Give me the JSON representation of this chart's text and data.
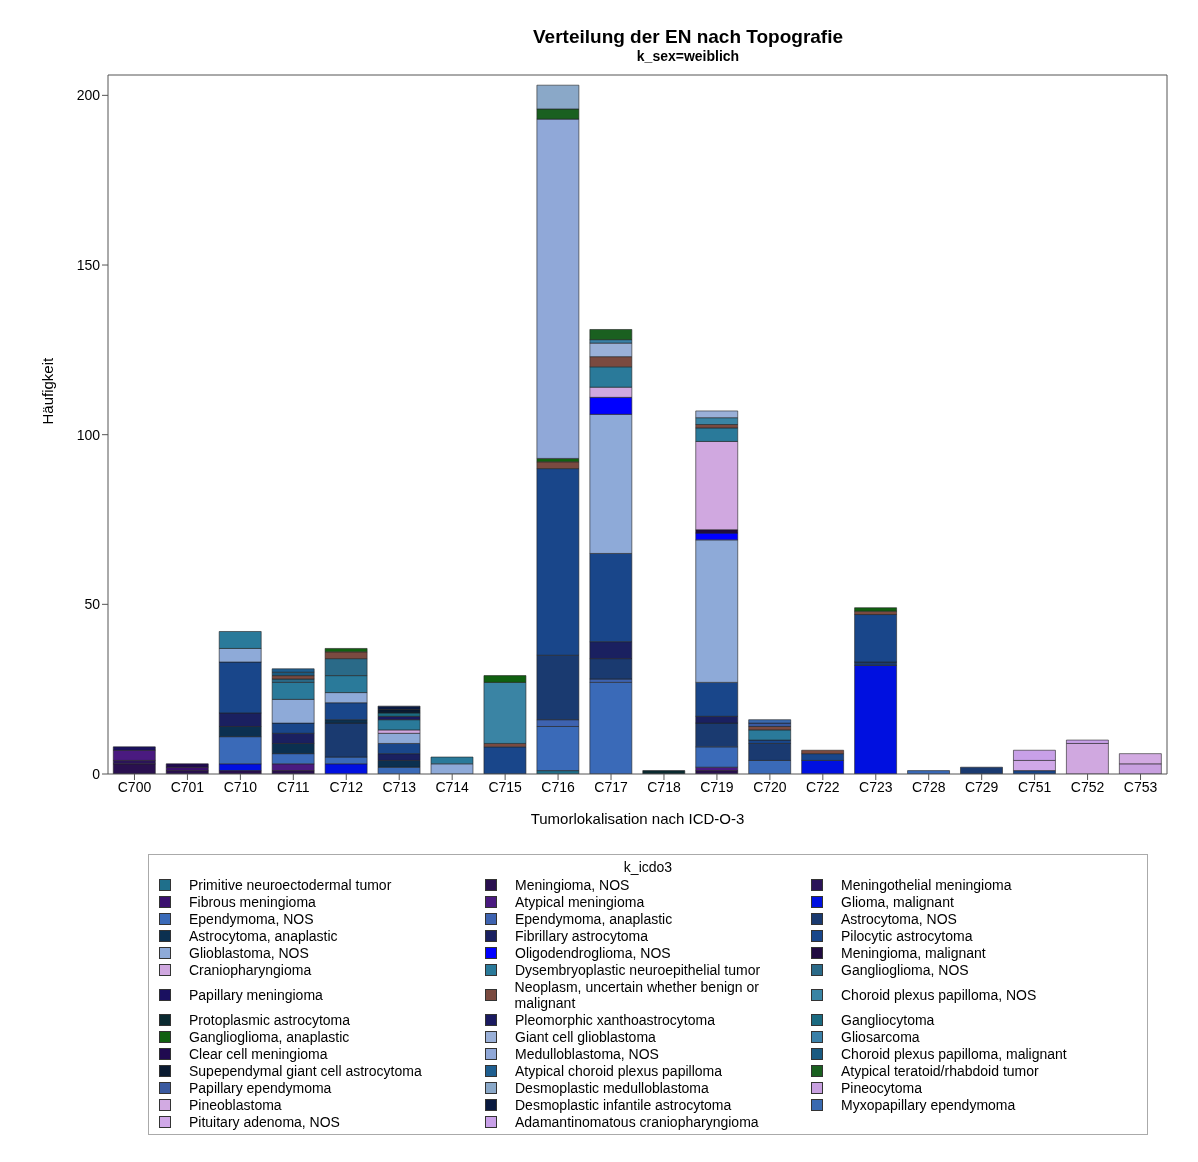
{
  "chart_data": {
    "type": "bar",
    "stacked": true,
    "title": "Verteilung der EN nach Topografie",
    "subtitle": "k_sex=weiblich",
    "xlabel": "Tumorlokalisation nach ICD-O-3",
    "ylabel": "Häufigkeit",
    "legend_title": "k_icdo3",
    "legend": "bottom",
    "ylim": [
      0,
      206
    ],
    "yticks": [
      0,
      50,
      100,
      150,
      200
    ],
    "categories": [
      "C700",
      "C701",
      "C710",
      "C711",
      "C712",
      "C713",
      "C714",
      "C715",
      "C716",
      "C717",
      "C718",
      "C719",
      "C720",
      "C722",
      "C723",
      "C728",
      "C729",
      "C751",
      "C752",
      "C753"
    ],
    "series": [
      {
        "name": "Primitive neuroectodermal tumor",
        "color": "#1f6f8b",
        "values": [
          null,
          null,
          null,
          null,
          null,
          null,
          null,
          null,
          1,
          null,
          null,
          null,
          null,
          null,
          null,
          null,
          null,
          null,
          null,
          null
        ]
      },
      {
        "name": "Meningioma, NOS",
        "color": "#2a1050",
        "values": [
          3,
          1,
          1,
          1,
          null,
          null,
          null,
          null,
          null,
          null,
          null,
          1,
          null,
          null,
          null,
          null,
          null,
          null,
          null,
          null
        ]
      },
      {
        "name": "Meningothelial meningioma",
        "color": "#2b1458",
        "values": [
          1,
          null,
          null,
          null,
          null,
          null,
          null,
          null,
          null,
          null,
          null,
          null,
          null,
          null,
          null,
          null,
          null,
          null,
          null,
          null
        ]
      },
      {
        "name": "Fibrous meningioma",
        "color": "#3a0f6e",
        "values": [
          null,
          1,
          null,
          null,
          null,
          null,
          null,
          null,
          null,
          null,
          null,
          null,
          null,
          null,
          null,
          null,
          null,
          null,
          null,
          null
        ]
      },
      {
        "name": "Atypical meningioma",
        "color": "#4a1a80",
        "values": [
          3,
          null,
          null,
          2,
          null,
          null,
          null,
          null,
          null,
          null,
          null,
          1,
          null,
          null,
          null,
          null,
          null,
          null,
          null,
          null
        ]
      },
      {
        "name": "Glioma, malignant",
        "color": "#0010e0",
        "values": [
          null,
          null,
          2,
          null,
          3,
          null,
          null,
          null,
          null,
          null,
          null,
          null,
          null,
          4,
          32,
          null,
          null,
          null,
          null,
          null
        ]
      },
      {
        "name": "Ependymoma, NOS",
        "color": "#3a6ab8",
        "values": [
          null,
          null,
          8,
          3,
          2,
          2,
          null,
          null,
          13,
          27,
          null,
          6,
          4,
          null,
          null,
          1,
          null,
          null,
          null,
          null
        ]
      },
      {
        "name": "Ependymoma, anaplastic",
        "color": "#3e63b0",
        "values": [
          null,
          null,
          null,
          null,
          null,
          null,
          null,
          null,
          2,
          1,
          null,
          null,
          null,
          null,
          null,
          null,
          null,
          null,
          null,
          null
        ]
      },
      {
        "name": "Astrocytoma, NOS",
        "color": "#1a3a70",
        "values": [
          null,
          null,
          null,
          null,
          10,
          null,
          null,
          null,
          19,
          6,
          null,
          7,
          5,
          null,
          1,
          null,
          2,
          null,
          null,
          null
        ]
      },
      {
        "name": "Astrocytoma, anaplastic",
        "color": "#0b3050",
        "values": [
          null,
          null,
          3,
          3,
          1,
          2,
          null,
          null,
          null,
          null,
          null,
          null,
          null,
          null,
          null,
          null,
          null,
          null,
          null,
          null
        ]
      },
      {
        "name": "Fibrillary astrocytoma",
        "color": "#1a2060",
        "values": [
          null,
          null,
          4,
          3,
          null,
          2,
          null,
          null,
          null,
          5,
          null,
          2,
          null,
          null,
          null,
          null,
          null,
          null,
          null,
          null
        ]
      },
      {
        "name": "Pilocytic astrocytoma",
        "color": "#19468a",
        "values": [
          null,
          null,
          15,
          3,
          5,
          3,
          null,
          8,
          55,
          26,
          null,
          10,
          1,
          2,
          14,
          null,
          null,
          1,
          null,
          null
        ]
      },
      {
        "name": "Glioblastoma, NOS",
        "color": "#8eaad8",
        "values": [
          null,
          null,
          4,
          7,
          3,
          3,
          3,
          null,
          null,
          41,
          null,
          42,
          null,
          null,
          null,
          null,
          null,
          null,
          null,
          null
        ]
      },
      {
        "name": "Oligodendroglioma, NOS",
        "color": "#0000ff",
        "values": [
          null,
          null,
          null,
          null,
          null,
          null,
          null,
          null,
          null,
          5,
          null,
          2,
          null,
          null,
          null,
          null,
          null,
          null,
          null,
          null
        ]
      },
      {
        "name": "Meningioma, malignant",
        "color": "#200a40",
        "values": [
          null,
          null,
          null,
          null,
          null,
          null,
          null,
          null,
          null,
          null,
          null,
          1,
          null,
          null,
          null,
          null,
          null,
          null,
          null,
          null
        ]
      },
      {
        "name": "Craniopharyngioma",
        "color": "#d0a8e0",
        "values": [
          null,
          null,
          null,
          null,
          null,
          1,
          null,
          null,
          null,
          3,
          null,
          26,
          null,
          null,
          null,
          null,
          null,
          null,
          9,
          null
        ]
      },
      {
        "name": "Dysembryoplastic neuroepithelial tumor",
        "color": "#2a7a9a",
        "values": [
          null,
          null,
          5,
          5,
          5,
          3,
          2,
          null,
          null,
          6,
          null,
          4,
          3,
          null,
          null,
          null,
          null,
          null,
          null,
          null
        ]
      },
      {
        "name": "Ganglioglioma, NOS",
        "color": "#2a6a88",
        "values": [
          null,
          null,
          null,
          1,
          5,
          null,
          null,
          null,
          null,
          null,
          null,
          null,
          null,
          null,
          null,
          null,
          null,
          null,
          null,
          null
        ]
      },
      {
        "name": "Papillary meningioma",
        "color": "#1a1060",
        "values": [
          1,
          null,
          null,
          null,
          null,
          null,
          null,
          null,
          null,
          null,
          null,
          null,
          null,
          null,
          null,
          null,
          null,
          null,
          null,
          null
        ]
      },
      {
        "name": "Neoplasm, uncertain whether benign or malignant",
        "color": "#7a4a40",
        "values": [
          null,
          null,
          null,
          1,
          2,
          null,
          null,
          1,
          2,
          3,
          null,
          1,
          1,
          1,
          1,
          null,
          null,
          null,
          null,
          null
        ]
      },
      {
        "name": "Choroid plexus papilloma, NOS",
        "color": "#3a84a4",
        "values": [
          null,
          null,
          null,
          null,
          null,
          null,
          null,
          18,
          null,
          null,
          null,
          2,
          null,
          null,
          null,
          null,
          null,
          null,
          null,
          null
        ]
      },
      {
        "name": "Protoplasmic astrocytoma",
        "color": "#0a2a30",
        "values": [
          null,
          null,
          null,
          null,
          null,
          null,
          null,
          null,
          null,
          null,
          1,
          null,
          null,
          null,
          null,
          null,
          null,
          null,
          null,
          null
        ]
      },
      {
        "name": "Pleomorphic xanthoastrocytoma",
        "color": "#1a1a60",
        "values": [
          null,
          null,
          null,
          null,
          null,
          1,
          null,
          null,
          null,
          null,
          null,
          null,
          null,
          null,
          null,
          null,
          null,
          null,
          null,
          null
        ]
      },
      {
        "name": "Gangliocytoma",
        "color": "#1a6a80",
        "values": [
          null,
          null,
          null,
          null,
          null,
          1,
          null,
          null,
          null,
          null,
          null,
          null,
          null,
          null,
          null,
          null,
          null,
          null,
          null,
          null
        ]
      },
      {
        "name": "Ganglioglioma, anaplastic",
        "color": "#106010",
        "values": [
          null,
          null,
          null,
          null,
          1,
          null,
          null,
          2,
          1,
          null,
          null,
          null,
          null,
          null,
          1,
          null,
          null,
          null,
          null,
          null
        ]
      },
      {
        "name": "Giant cell glioblastoma",
        "color": "#9ab0d8",
        "values": [
          null,
          null,
          null,
          null,
          null,
          null,
          null,
          null,
          null,
          4,
          null,
          2,
          null,
          null,
          null,
          null,
          null,
          null,
          null,
          null
        ]
      },
      {
        "name": "Gliosarcoma",
        "color": "#3a80a8",
        "values": [
          null,
          null,
          null,
          null,
          null,
          null,
          null,
          null,
          null,
          1,
          null,
          null,
          null,
          null,
          null,
          null,
          null,
          null,
          null,
          null
        ]
      },
      {
        "name": "Clear cell meningioma",
        "color": "#200a50",
        "values": [
          null,
          1,
          null,
          null,
          null,
          null,
          null,
          null,
          null,
          null,
          null,
          null,
          null,
          null,
          null,
          null,
          null,
          null,
          null,
          null
        ]
      },
      {
        "name": "Medulloblastoma, NOS",
        "color": "#90a8d8",
        "values": [
          null,
          null,
          null,
          null,
          null,
          null,
          null,
          null,
          100,
          null,
          null,
          null,
          null,
          null,
          null,
          null,
          null,
          null,
          null,
          null
        ]
      },
      {
        "name": "Choroid plexus papilloma, malignant",
        "color": "#1a5a80",
        "values": [
          null,
          null,
          null,
          1,
          null,
          null,
          null,
          null,
          null,
          null,
          null,
          null,
          null,
          null,
          null,
          null,
          null,
          null,
          null,
          null
        ]
      },
      {
        "name": "Supependymal giant cell astrocytoma",
        "color": "#0a1a30",
        "values": [
          null,
          null,
          null,
          null,
          null,
          1,
          null,
          null,
          null,
          null,
          null,
          null,
          null,
          null,
          null,
          null,
          null,
          null,
          null,
          null
        ]
      },
      {
        "name": "Atypical choroid plexus papilloma",
        "color": "#1f5f90",
        "values": [
          null,
          null,
          null,
          1,
          null,
          null,
          null,
          null,
          null,
          null,
          null,
          null,
          null,
          null,
          null,
          null,
          null,
          null,
          null,
          null
        ]
      },
      {
        "name": "Atypical teratoid/rhabdoid tumor",
        "color": "#1a6020",
        "values": [
          null,
          null,
          null,
          null,
          null,
          null,
          null,
          null,
          3,
          3,
          null,
          null,
          null,
          null,
          null,
          null,
          null,
          null,
          null,
          null
        ]
      },
      {
        "name": "Papillary ependymoma",
        "color": "#3a5aa0",
        "values": [
          null,
          null,
          null,
          null,
          null,
          null,
          null,
          null,
          null,
          null,
          null,
          null,
          1,
          null,
          null,
          null,
          null,
          null,
          null,
          null
        ]
      },
      {
        "name": "Desmoplastic medulloblastoma",
        "color": "#8aa8c8",
        "values": [
          null,
          null,
          null,
          null,
          null,
          null,
          null,
          null,
          7,
          null,
          null,
          null,
          null,
          null,
          null,
          null,
          null,
          null,
          null,
          null
        ]
      },
      {
        "name": "Pineocytoma",
        "color": "#c8a0e0",
        "values": [
          null,
          null,
          null,
          null,
          null,
          null,
          null,
          null,
          null,
          null,
          null,
          null,
          null,
          null,
          null,
          null,
          null,
          null,
          null,
          3
        ]
      },
      {
        "name": "Pineoblastoma",
        "color": "#d2aae2",
        "values": [
          null,
          null,
          null,
          null,
          null,
          null,
          null,
          null,
          null,
          null,
          null,
          null,
          null,
          null,
          null,
          null,
          null,
          null,
          null,
          3
        ]
      },
      {
        "name": "Desmoplastic infantile astrocytoma",
        "color": "#0a1a40",
        "values": [
          null,
          null,
          null,
          null,
          null,
          1,
          null,
          null,
          null,
          null,
          null,
          null,
          null,
          null,
          null,
          null,
          null,
          null,
          null,
          null
        ]
      },
      {
        "name": "Myxopapillary ependymoma",
        "color": "#3a6ab0",
        "values": [
          null,
          null,
          null,
          null,
          null,
          null,
          null,
          null,
          null,
          null,
          null,
          null,
          1,
          null,
          null,
          null,
          null,
          null,
          null,
          null
        ]
      },
      {
        "name": "Pituitary adenoma, NOS",
        "color": "#d0a8e8",
        "values": [
          null,
          null,
          null,
          null,
          null,
          null,
          null,
          null,
          null,
          null,
          null,
          null,
          null,
          null,
          null,
          null,
          null,
          3,
          null,
          null
        ]
      },
      {
        "name": "Adamantinomatous craniopharyngioma",
        "color": "#c8a0e8",
        "values": [
          null,
          null,
          null,
          null,
          null,
          null,
          null,
          null,
          null,
          null,
          null,
          null,
          null,
          null,
          null,
          null,
          null,
          3,
          1,
          null
        ]
      }
    ]
  }
}
